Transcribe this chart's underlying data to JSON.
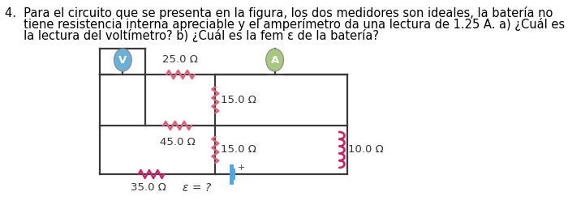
{
  "bg_color": "#ffffff",
  "text_color": "#000000",
  "wire_color": "#3a3a3a",
  "resistor_pink": "#e0607a",
  "resistor_magenta": "#cc2266",
  "voltmeter_color": "#6ab0d8",
  "ammeter_color": "#a8c880",
  "battery_color": "#44aaee",
  "font_size_text": 10.5,
  "font_size_labels": 9.5,
  "text_line1": "4.  Para el circuito que se presenta en la figura, los dos medidores son ideales, la batería no",
  "text_line2": "     tiene resistencia interna apreciable y el amperímetro da una lectura de 1.25 A. a) ¿Cuál es",
  "text_line3": "     la lectura del voltímetro? b) ¿Cuál es la fem ε de la batería?"
}
